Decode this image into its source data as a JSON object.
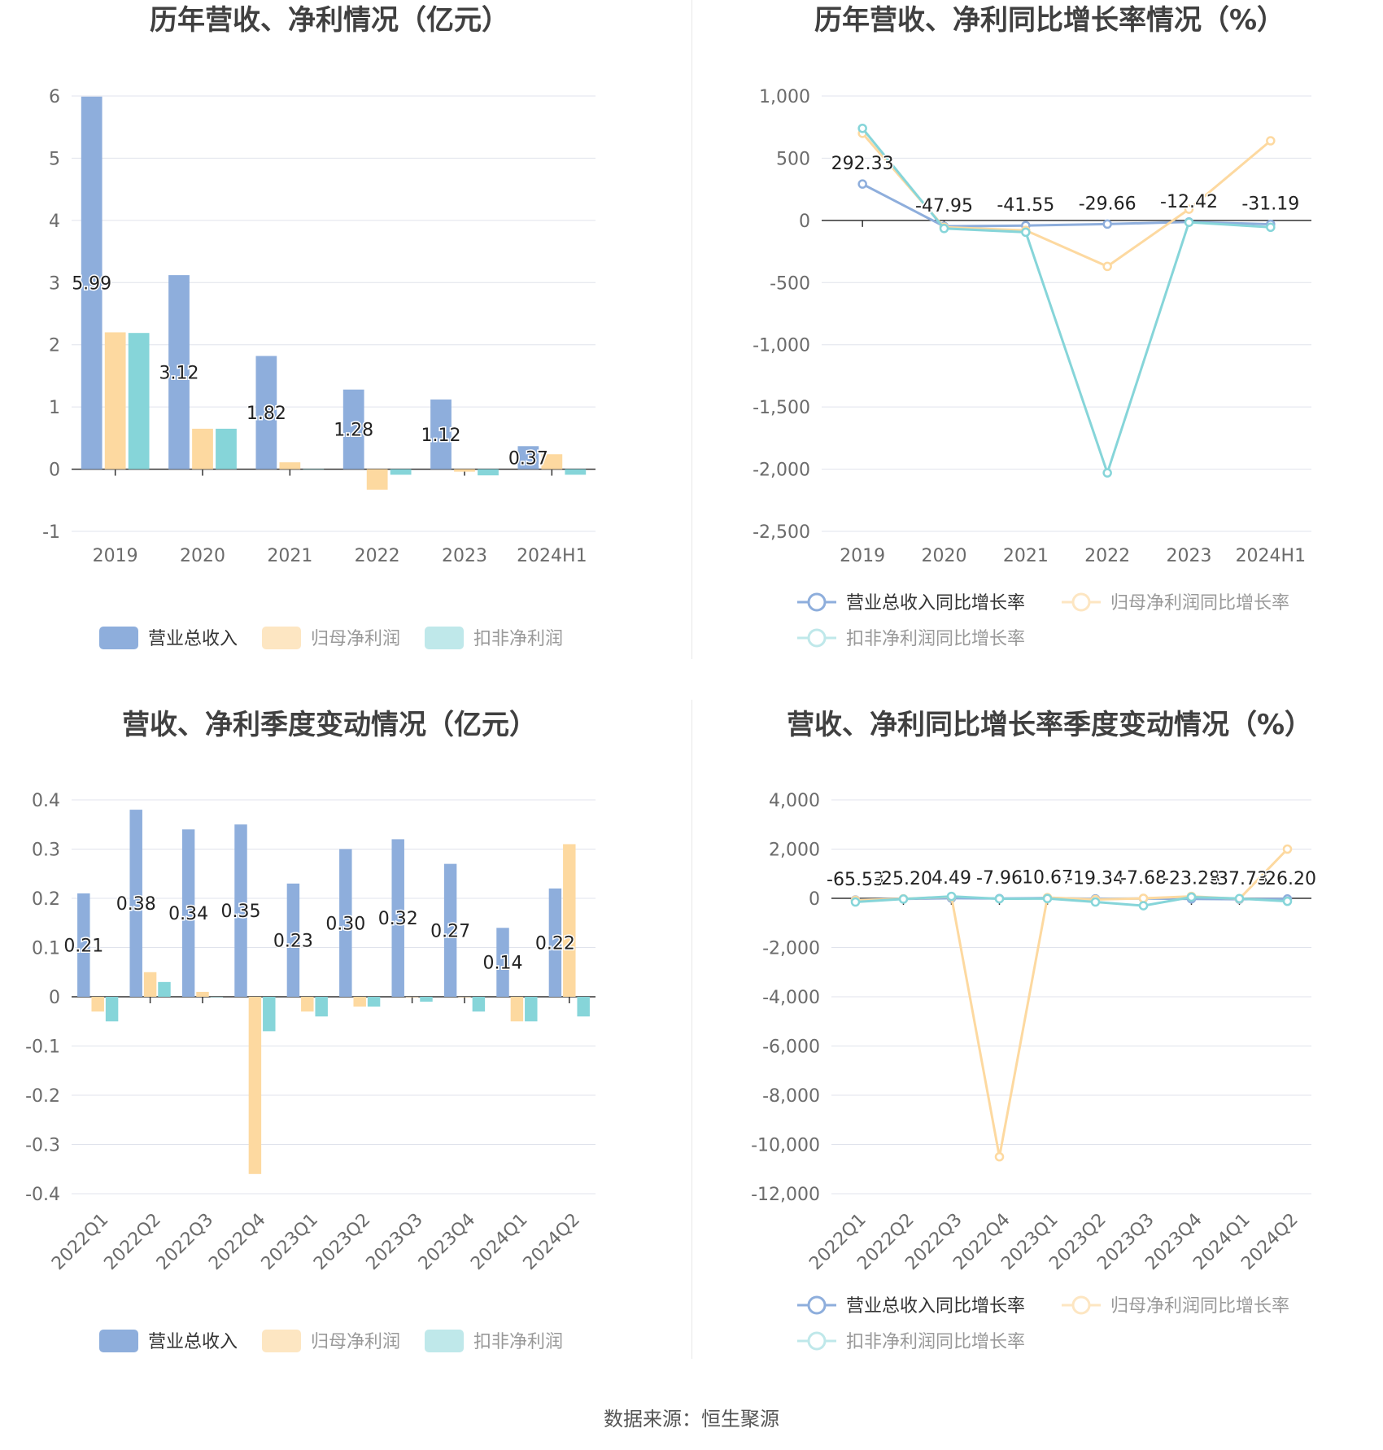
{
  "source": "数据来源：恒生聚源",
  "colors": {
    "revenue": "#8eaedc",
    "net_profit": "#fdd9a0",
    "deducted_profit": "#86d5d9",
    "grid": "#e0e3ec",
    "axis_text": "#6b6b6b",
    "title": "#404040"
  },
  "chart_data": [
    {
      "type": "bar",
      "title": "历年营收、净利情况（亿元）",
      "categories": [
        "2019",
        "2020",
        "2021",
        "2022",
        "2023",
        "2024H1"
      ],
      "ylim": [
        -1,
        6
      ],
      "yticks": [
        "-1",
        "0",
        "1",
        "2",
        "3",
        "4",
        "5",
        "6"
      ],
      "grid": true,
      "legend_position": "bottom",
      "series": [
        {
          "name": "营业总收入",
          "values": [
            5.99,
            3.12,
            1.82,
            1.28,
            1.12,
            0.37
          ],
          "labels": [
            "5.99",
            "3.12",
            "1.82",
            "1.28",
            "1.12",
            "0.37"
          ]
        },
        {
          "name": "归母净利润",
          "values": [
            2.2,
            0.65,
            0.11,
            -0.33,
            -0.04,
            0.24
          ]
        },
        {
          "name": "扣非净利润",
          "values": [
            2.19,
            0.65,
            0.0,
            -0.09,
            -0.1,
            -0.09
          ]
        }
      ]
    },
    {
      "type": "line",
      "title": "历年营收、净利同比增长率情况（%）",
      "categories": [
        "2019",
        "2020",
        "2021",
        "2022",
        "2023",
        "2024H1"
      ],
      "ylim": [
        -2500,
        1000
      ],
      "yticks": [
        "-2,500",
        "-2,000",
        "-1,500",
        "-1,000",
        "-500",
        "0",
        "500",
        "1,000"
      ],
      "grid": true,
      "legend_position": "bottom",
      "series": [
        {
          "name": "营业总收入同比增长率",
          "values": [
            292.33,
            -47.95,
            -41.55,
            -29.66,
            -12.42,
            -31.19
          ],
          "labels": [
            "292.33",
            "-47.95",
            "-41.55",
            "-29.66",
            "-12.42",
            "-31.19"
          ]
        },
        {
          "name": "归母净利润同比增长率",
          "values": [
            700,
            -55,
            -80,
            -370,
            90,
            640
          ]
        },
        {
          "name": "扣非净利润同比增长率",
          "values": [
            740,
            -65,
            -95,
            -2030,
            -15,
            -55
          ]
        }
      ]
    },
    {
      "type": "bar",
      "title": "营收、净利季度变动情况（亿元）",
      "categories": [
        "2022Q1",
        "2022Q2",
        "2022Q3",
        "2022Q4",
        "2023Q1",
        "2023Q2",
        "2023Q3",
        "2023Q4",
        "2024Q1",
        "2024Q2"
      ],
      "ylim": [
        -0.4,
        0.4
      ],
      "yticks": [
        "-0.4",
        "-0.3",
        "-0.2",
        "-0.1",
        "0",
        "0.1",
        "0.2",
        "0.3",
        "0.4"
      ],
      "grid": true,
      "legend_position": "bottom",
      "series": [
        {
          "name": "营业总收入",
          "values": [
            0.21,
            0.38,
            0.34,
            0.35,
            0.23,
            0.3,
            0.32,
            0.27,
            0.14,
            0.22
          ],
          "labels": [
            "0.21",
            "0.38",
            "0.34",
            "0.35",
            "0.23",
            "0.30",
            "0.32",
            "0.27",
            "0.14",
            "0.22"
          ]
        },
        {
          "name": "归母净利润",
          "values": [
            -0.03,
            0.05,
            0.01,
            -0.36,
            -0.03,
            -0.02,
            0.0,
            0.0,
            -0.05,
            0.31
          ]
        },
        {
          "name": "扣非净利润",
          "values": [
            -0.05,
            0.03,
            0.0,
            -0.07,
            -0.04,
            -0.02,
            -0.01,
            -0.03,
            -0.05,
            -0.04
          ]
        }
      ]
    },
    {
      "type": "line",
      "title": "营收、净利同比增长率季度变动情况（%）",
      "categories": [
        "2022Q1",
        "2022Q2",
        "2022Q3",
        "2022Q4",
        "2023Q1",
        "2023Q2",
        "2023Q3",
        "2023Q4",
        "2024Q1",
        "2024Q2"
      ],
      "ylim": [
        -12000,
        4000
      ],
      "yticks": [
        "-12,000",
        "-10,000",
        "-8,000",
        "-6,000",
        "-4,000",
        "-2,000",
        "0",
        "2,000",
        "4,000"
      ],
      "grid": true,
      "legend_position": "bottom",
      "series": [
        {
          "name": "营业总收入同比增长率",
          "values": [
            -65.53,
            -25.2,
            4.49,
            -7.96,
            10.67,
            -19.34,
            -7.68,
            -23.28,
            -37.73,
            -26.2
          ],
          "labels": [
            "-65.53",
            "-25.20",
            "4.49",
            "-7.96",
            "10.67",
            "-19.34",
            "-7.68",
            "-23.28",
            "-37.73",
            "-26.20"
          ]
        },
        {
          "name": "归母净利润同比增长率",
          "values": [
            -80,
            -20,
            60,
            -10500,
            30,
            -50,
            0,
            80,
            -20,
            2000
          ]
        },
        {
          "name": "扣非净利润同比增长率",
          "values": [
            -150,
            -30,
            80,
            -20,
            -10,
            -150,
            -300,
            50,
            -10,
            -120
          ]
        }
      ]
    }
  ]
}
